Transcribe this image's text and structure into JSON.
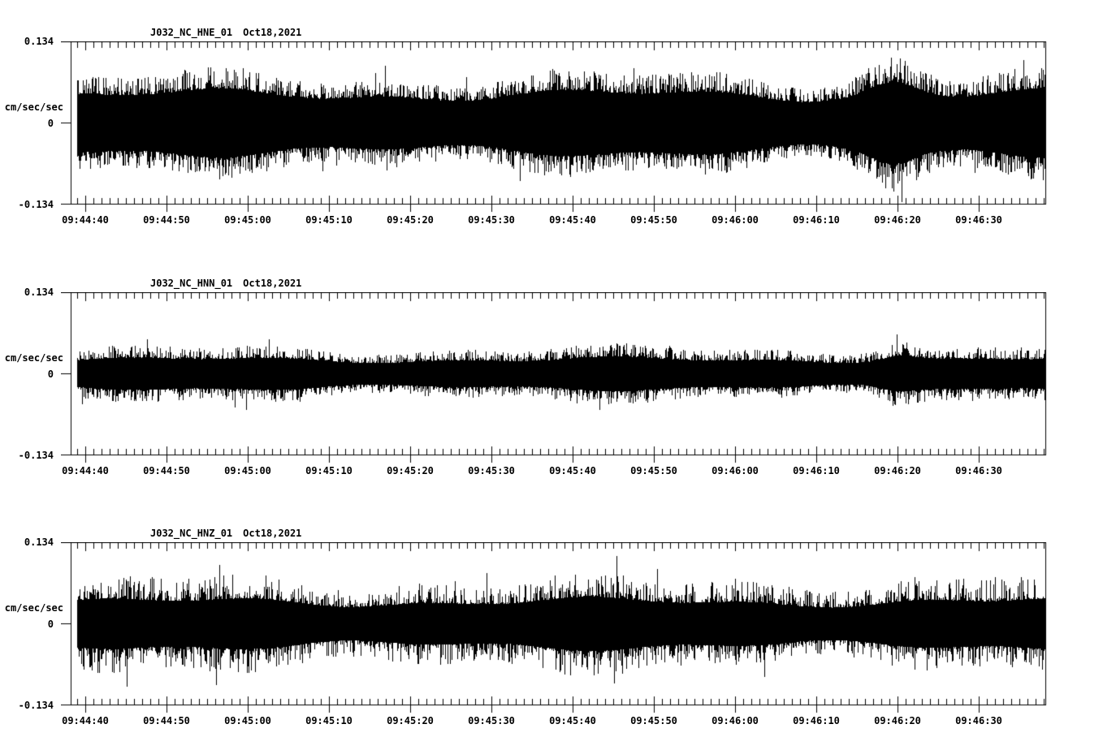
{
  "colors": {
    "background": "#ffffff",
    "ink": "#000000"
  },
  "chart_data": {
    "type": "line",
    "kind": "seismogram-noise-waveforms",
    "grid": false,
    "legend": false,
    "time_axis": {
      "labels": [
        "09:44:40",
        "09:44:50",
        "09:45:00",
        "09:45:10",
        "09:45:20",
        "09:45:30",
        "09:45:40",
        "09:45:50",
        "09:46:00",
        "09:46:10",
        "09:46:20",
        "09:46:30"
      ],
      "span_seconds": 120,
      "first_label_offset_seconds": 1.8,
      "major_interval_seconds": 10,
      "minor_interval_seconds": 1
    },
    "amplitude_axis": {
      "label": "cm/sec/sec",
      "tick_labels": [
        "0.134",
        "0",
        "-0.134"
      ],
      "tick_values": [
        0.134,
        0,
        -0.134
      ],
      "ylim": [
        -0.134,
        0.134
      ]
    },
    "plots": [
      {
        "title": "J032_NC_HNE_01",
        "date": "Oct18,2021",
        "channel": "HNE",
        "noise": {
          "base_amplitude": 0.075,
          "core_fraction": 0.6,
          "spike_sharpness": 2.2,
          "seed": 41,
          "event": {
            "center_seconds": 101.2,
            "sigma_seconds": 4.0,
            "gain": 0.5,
            "peak_up": 0.107,
            "peak_up_seconds": 101.0,
            "peak_down": 0.13,
            "peak_down_seconds": 102.3
          }
        }
      },
      {
        "title": "J032_NC_HNN_01",
        "date": "Oct18,2021",
        "channel": "HNN",
        "noise": {
          "base_amplitude": 0.04,
          "core_fraction": 0.55,
          "spike_sharpness": 2.4,
          "seed": 97,
          "event": {
            "center_seconds": 101.5,
            "sigma_seconds": 3.0,
            "gain": 0.45,
            "peak_up": 0.064,
            "peak_up_seconds": 101.7,
            "peak_down": 0.052,
            "peak_down_seconds": 101.2
          }
        }
      },
      {
        "title": "J032_NC_HNZ_01",
        "date": "Oct18,2021",
        "channel": "HNZ",
        "noise": {
          "base_amplitude": 0.07,
          "core_fraction": 0.5,
          "spike_sharpness": 3.0,
          "seed": 7,
          "event": null
        }
      }
    ]
  }
}
